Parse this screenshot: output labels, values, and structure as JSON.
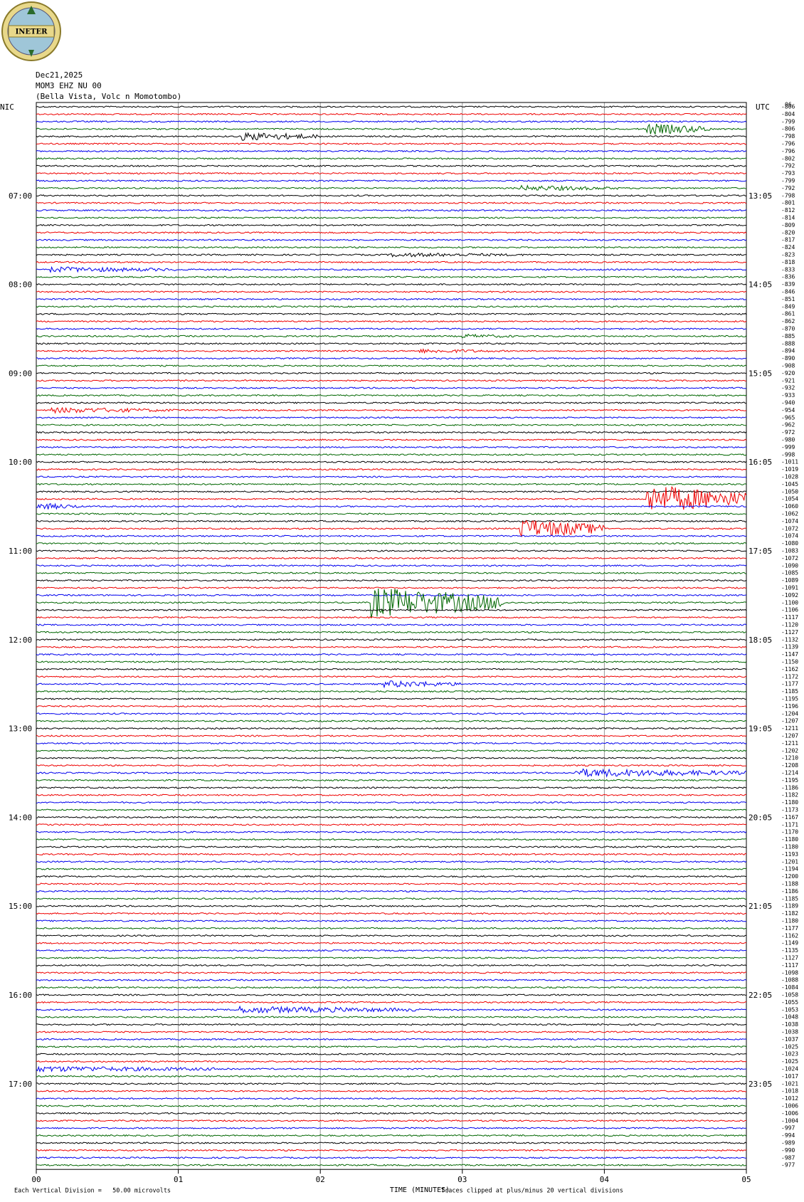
{
  "header": {
    "logo": "INETER",
    "date": "Dec21,2025",
    "station": "MOM3 EHZ NU 00",
    "location": "(Bella Vista, Volc n Momotombo)"
  },
  "axis": {
    "left_title": "NIC",
    "right_title": "UTC",
    "top_right": "06",
    "left_labels": [
      "07:00",
      "08:00",
      "09:00",
      "10:00",
      "11:00",
      "12:00",
      "13:00",
      "14:00",
      "15:00",
      "16:00",
      "17:00"
    ],
    "right_labels": [
      "13:05",
      "14:05",
      "15:05",
      "16:05",
      "17:05",
      "18:05",
      "19:05",
      "20:05",
      "21:05",
      "22:05",
      "23:05"
    ],
    "x_labels": [
      "00",
      "01",
      "02",
      "03",
      "04",
      "05"
    ],
    "x_title": "TIME (MINUTES)"
  },
  "row_offsets": [
    -806,
    -804,
    -799,
    -806,
    -798,
    -796,
    -796,
    -802,
    -792,
    -793,
    -799,
    -792,
    -798,
    -801,
    -812,
    -814,
    -809,
    -820,
    -817,
    -824,
    -823,
    -818,
    -833,
    -836,
    -839,
    -846,
    -851,
    -849,
    -861,
    -862,
    -870,
    -885,
    -888,
    -894,
    -890,
    -908,
    -920,
    -921,
    -932,
    -933,
    -940,
    -954,
    -965,
    -962,
    -972,
    -980,
    -999,
    -998,
    -1011,
    -1019,
    -1028,
    -1045,
    -1050,
    -1054,
    -1060,
    -1062,
    -1074,
    -1072,
    -1074,
    -1080,
    -1083,
    -1072,
    -1090,
    -1085,
    -1089,
    -1091,
    -1092,
    -1100,
    -1106,
    -1117,
    -1120,
    -1127,
    -1132,
    -1139,
    -1147,
    -1150,
    -1162,
    -1172,
    -1177,
    -1185,
    -1195,
    -1196,
    -1204,
    -1207,
    -1211,
    -1207,
    -1211,
    -1202,
    -1210,
    -1208,
    -1214,
    -1195,
    -1186,
    -1182,
    -1180,
    -1173,
    -1167,
    -1171,
    -1170,
    -1180,
    -1180,
    -1193,
    -1201,
    -1194,
    -1200,
    -1188,
    -1186,
    -1185,
    -1189,
    -1182,
    -1180,
    -1177,
    -1162,
    -1149,
    -1135,
    -1127,
    -1117,
    -1098,
    -1088,
    -1084,
    -1058,
    -1055,
    -1053,
    -1048,
    -1038,
    -1038,
    -1037,
    -1025,
    -1023,
    -1025,
    -1024,
    -1017,
    -1021,
    -1018,
    -1012,
    -1006,
    -1006,
    -1004,
    -997,
    -994,
    -989,
    -990,
    -987,
    -977
  ],
  "footer": {
    "scale": "Each Vertical Division =   50.00 microvolts",
    "clip": "Traces clipped at plus/minus 20 vertical divisions"
  }
}
